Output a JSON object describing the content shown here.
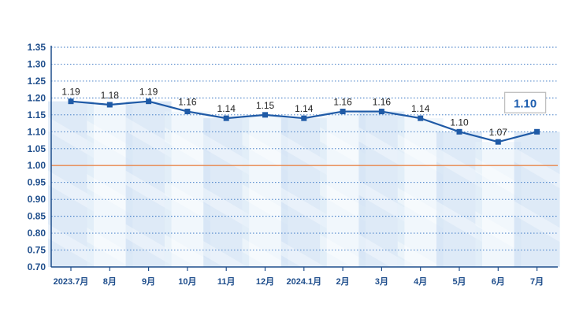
{
  "chart_data": {
    "type": "line",
    "title": "",
    "xlabel": "",
    "ylabel": "",
    "categories": [
      "2023.7月",
      "8月",
      "9月",
      "10月",
      "11月",
      "12月",
      "2024.1月",
      "2月",
      "3月",
      "4月",
      "5月",
      "6月",
      "7月"
    ],
    "series": [
      {
        "values": [
          1.19,
          1.18,
          1.19,
          1.16,
          1.14,
          1.15,
          1.14,
          1.16,
          1.16,
          1.14,
          1.1,
          1.07,
          1.1
        ]
      }
    ],
    "data_labels": [
      "1.19",
      "1.18",
      "1.19",
      "1.16",
      "1.14",
      "1.15",
      "1.14",
      "1.16",
      "1.16",
      "1.14",
      "1.10",
      "1.07",
      ""
    ],
    "callout": "1.10",
    "ylim": [
      0.7,
      1.35
    ],
    "y_ticks": [
      "0.70",
      "0.75",
      "0.80",
      "0.85",
      "0.90",
      "0.95",
      "1.00",
      "1.05",
      "1.10",
      "1.15",
      "1.20",
      "1.25",
      "1.30",
      "1.35"
    ],
    "reference_line": 1.0,
    "grid": true,
    "colors": {
      "line": "#1f5aa6",
      "axis": "#1f4e8c",
      "grid": "#2f6fc0",
      "reference": "#e8864a",
      "fill_dark": "#c3d8f0",
      "fill_light": "#e6f0fa",
      "callout_border": "#bfbfbf"
    }
  }
}
